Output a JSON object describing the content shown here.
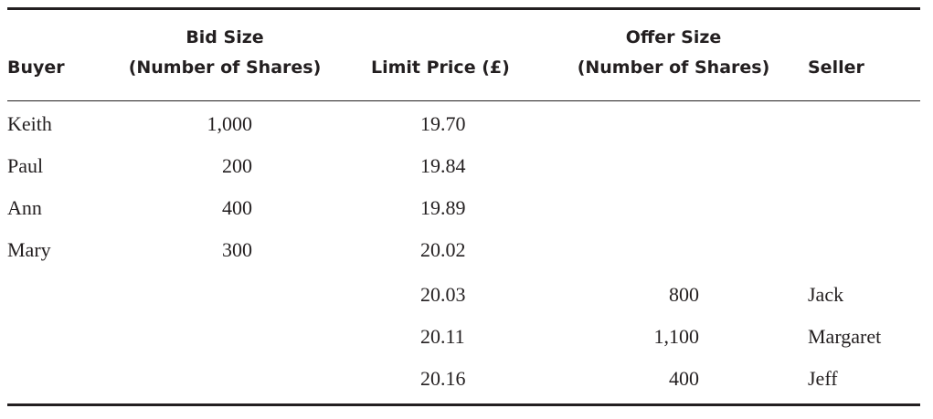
{
  "table": {
    "headers": {
      "buyer": "Buyer",
      "bid_size_line1": "Bid Size",
      "bid_size_line2": "(Number of Shares)",
      "limit_price": "Limit Price (£)",
      "offer_size_line1": "Offer Size",
      "offer_size_line2": "(Number of Shares)",
      "seller": "Seller"
    },
    "rows": [
      {
        "buyer": "Keith",
        "bid_size": "1,000",
        "limit_price": "19.70",
        "offer_size": "",
        "seller": ""
      },
      {
        "buyer": "Paul",
        "bid_size": "200",
        "limit_price": "19.84",
        "offer_size": "",
        "seller": ""
      },
      {
        "buyer": "Ann",
        "bid_size": "400",
        "limit_price": "19.89",
        "offer_size": "",
        "seller": ""
      },
      {
        "buyer": "Mary",
        "bid_size": "300",
        "limit_price": "20.02",
        "offer_size": "",
        "seller": ""
      },
      {
        "buyer": "",
        "bid_size": "",
        "limit_price": "20.03",
        "offer_size": "800",
        "seller": "Jack"
      },
      {
        "buyer": "",
        "bid_size": "",
        "limit_price": "20.11",
        "offer_size": "1,100",
        "seller": "Margaret"
      },
      {
        "buyer": "",
        "bid_size": "",
        "limit_price": "20.16",
        "offer_size": "400",
        "seller": "Jeff"
      }
    ]
  }
}
